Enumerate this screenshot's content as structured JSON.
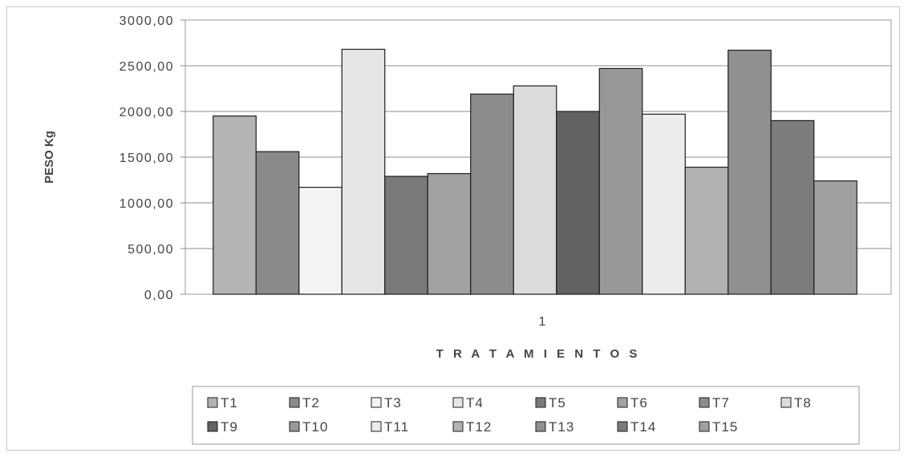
{
  "chart_data": {
    "type": "bar",
    "categories": [
      "1"
    ],
    "xlabel": "T R A T A M I E N T O S",
    "ylabel": "PESO Kg",
    "ylim": [
      0,
      3000
    ],
    "yticks": [
      "0,00",
      "500,00",
      "1000,00",
      "1500,00",
      "2000,00",
      "2500,00",
      "3000,00"
    ],
    "grid": true,
    "legend": "bottom",
    "series": [
      {
        "name": "T1",
        "values": [
          1950
        ],
        "color": "#b4b4b4"
      },
      {
        "name": "T2",
        "values": [
          1560
        ],
        "color": "#8a8a8a"
      },
      {
        "name": "T3",
        "values": [
          1170
        ],
        "color": "#f4f4f4"
      },
      {
        "name": "T4",
        "values": [
          2680
        ],
        "color": "#e6e6e6"
      },
      {
        "name": "T5",
        "values": [
          1290
        ],
        "color": "#7a7a7a"
      },
      {
        "name": "T6",
        "values": [
          1320
        ],
        "color": "#a2a2a2"
      },
      {
        "name": "T7",
        "values": [
          2190
        ],
        "color": "#8c8c8c"
      },
      {
        "name": "T8",
        "values": [
          2280
        ],
        "color": "#dcdcdc"
      },
      {
        "name": "T9",
        "values": [
          2000
        ],
        "color": "#626262"
      },
      {
        "name": "T10",
        "values": [
          2470
        ],
        "color": "#989898"
      },
      {
        "name": "T11",
        "values": [
          1970
        ],
        "color": "#ececec"
      },
      {
        "name": "T12",
        "values": [
          1390
        ],
        "color": "#b2b2b2"
      },
      {
        "name": "T13",
        "values": [
          2670
        ],
        "color": "#909090"
      },
      {
        "name": "T14",
        "values": [
          1900
        ],
        "color": "#7c7c7c"
      },
      {
        "name": "T15",
        "values": [
          1240
        ],
        "color": "#a0a0a0"
      }
    ]
  }
}
